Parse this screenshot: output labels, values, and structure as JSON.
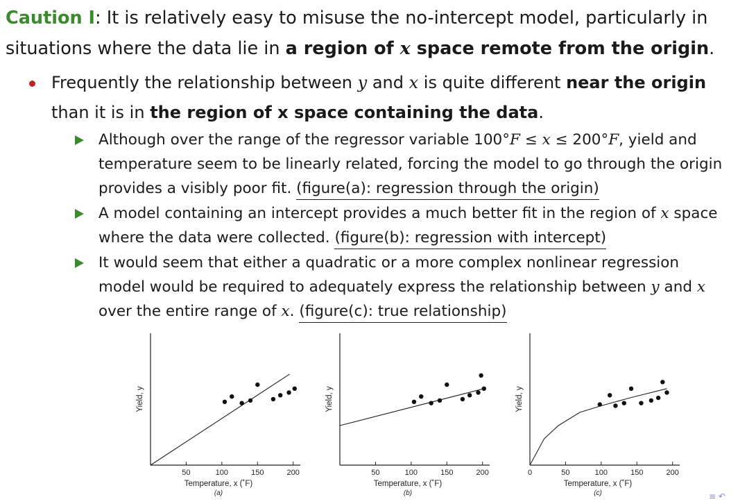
{
  "heading": {
    "caution_label": "Caution I",
    "text_a": ": It is relatively easy to misuse the no-intercept model, particularly in situations where the data lie in ",
    "bold_a": "a region of ",
    "var_x": "x",
    "bold_b": " space remote from the origin",
    "text_end": "."
  },
  "bullet": {
    "text_a": "Frequently the relationship between ",
    "var_y": "y",
    "text_b": " and ",
    "var_x": "x",
    "text_c": " is quite different ",
    "bold_a": "near the origin",
    "text_d": " than it is in ",
    "bold_b": "the region of x space containing the data",
    "text_end": "."
  },
  "sub1": {
    "text_a": "Although over the range of the regressor variable 100°",
    "math_f1": "F",
    "math_range": " ≤ x ≤ ",
    "text_b": "200°",
    "math_f2": "F",
    "text_c": ", yield and temperature seem to be linearly related, forcing the model to go through the origin provides a visibly poor fit. ",
    "link": "(figure(a): regression through the origin)"
  },
  "sub2": {
    "text_a": "A model containing an intercept provides a much better fit in the region of ",
    "var_x": "x",
    "text_b": " space where the data were collected. ",
    "link": "(figure(b): regression with intercept)"
  },
  "sub3": {
    "text_a": "It would seem that either a quadratic or a more complex nonlinear regression model would be required to adequately express the relationship between ",
    "var_y": "y",
    "text_b": " and ",
    "var_x": "x",
    "text_c": " over the entire range of ",
    "var_x2": "x",
    "text_d": ". ",
    "link": "(figure(c): true relationship)"
  },
  "chart_data": [
    {
      "type": "scatter",
      "panel": "(a)",
      "xlabel": "Temperature, x (˚F)",
      "ylabel": "Yield, y",
      "xlim": [
        0,
        210
      ],
      "ylim": [
        0,
        1
      ],
      "xticks": [
        50,
        100,
        150,
        200
      ],
      "points": [
        [
          104,
          0.48
        ],
        [
          114,
          0.52
        ],
        [
          128,
          0.47
        ],
        [
          140,
          0.49
        ],
        [
          150,
          0.61
        ],
        [
          172,
          0.5
        ],
        [
          182,
          0.53
        ],
        [
          194,
          0.55
        ],
        [
          202,
          0.58
        ]
      ],
      "fit": {
        "kind": "line-through-origin",
        "points": [
          [
            0,
            0
          ],
          [
            195,
            0.69
          ]
        ]
      }
    },
    {
      "type": "scatter",
      "panel": "(b)",
      "xlabel": "Temperature, x (˚F)",
      "ylabel": "Yield, y",
      "xlim": [
        0,
        210
      ],
      "ylim": [
        0,
        1
      ],
      "xticks": [
        50,
        100,
        150,
        200
      ],
      "points": [
        [
          104,
          0.48
        ],
        [
          114,
          0.52
        ],
        [
          128,
          0.47
        ],
        [
          140,
          0.49
        ],
        [
          150,
          0.61
        ],
        [
          172,
          0.5
        ],
        [
          182,
          0.53
        ],
        [
          194,
          0.55
        ],
        [
          198,
          0.68
        ],
        [
          202,
          0.58
        ]
      ],
      "fit": {
        "kind": "line-with-intercept",
        "points": [
          [
            0,
            0.3
          ],
          [
            202,
            0.58
          ]
        ]
      }
    },
    {
      "type": "scatter",
      "panel": "(c)",
      "xlabel": "Temperature, x (˚F)",
      "ylabel": "Yield, y",
      "xlim": [
        0,
        210
      ],
      "ylim": [
        0,
        1
      ],
      "xticks": [
        0,
        50,
        100,
        150,
        200
      ],
      "points": [
        [
          98,
          0.46
        ],
        [
          112,
          0.53
        ],
        [
          120,
          0.45
        ],
        [
          132,
          0.47
        ],
        [
          142,
          0.58
        ],
        [
          156,
          0.47
        ],
        [
          170,
          0.49
        ],
        [
          180,
          0.51
        ],
        [
          186,
          0.63
        ],
        [
          192,
          0.55
        ]
      ],
      "fit": {
        "kind": "curve",
        "points": [
          [
            0,
            0
          ],
          [
            20,
            0.2
          ],
          [
            40,
            0.3
          ],
          [
            70,
            0.4
          ],
          [
            100,
            0.45
          ],
          [
            140,
            0.51
          ],
          [
            192,
            0.58
          ]
        ]
      }
    }
  ]
}
